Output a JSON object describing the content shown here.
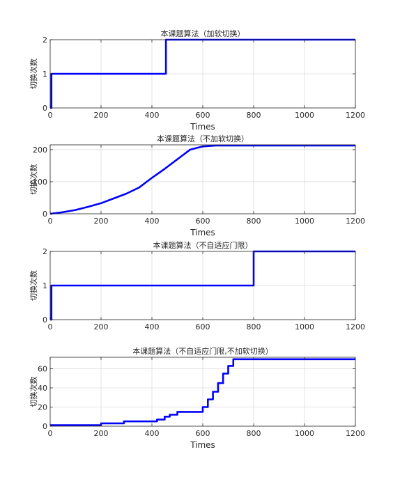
{
  "chart_data": [
    {
      "type": "line",
      "title": "本课题算法（加软切换）",
      "xlabel": "Times",
      "ylabel": "切换次数",
      "xlim": [
        0,
        1200
      ],
      "ylim": [
        0,
        2
      ],
      "xticks": [
        0,
        200,
        400,
        600,
        800,
        1000,
        1200
      ],
      "yticks": [
        0,
        1,
        2
      ],
      "grid": true,
      "line_color": "#0000ff",
      "series": [
        {
          "step": true,
          "x": [
            0,
            5,
            455,
            1200
          ],
          "y": [
            0,
            1,
            2,
            2
          ]
        }
      ]
    },
    {
      "type": "line",
      "title": "本课题算法（不加软切换）",
      "xlabel": "Times",
      "ylabel": "切换次数",
      "xlim": [
        0,
        1200
      ],
      "ylim": [
        0,
        215
      ],
      "xticks": [
        0,
        200,
        400,
        600,
        800,
        1000,
        1200
      ],
      "yticks": [
        0,
        100,
        200
      ],
      "grid": true,
      "line_color": "#0000ff",
      "series": [
        {
          "step": false,
          "x": [
            0,
            20,
            50,
            100,
            150,
            200,
            250,
            300,
            350,
            400,
            450,
            500,
            550,
            600,
            650,
            700,
            1200
          ],
          "y": [
            0,
            2,
            5,
            12,
            22,
            33,
            48,
            63,
            82,
            112,
            140,
            170,
            200,
            210,
            213,
            213,
            213
          ]
        }
      ]
    },
    {
      "type": "line",
      "title": "本课题算法（不自适应门限）",
      "xlabel": "",
      "ylabel": "切换次数",
      "xlim": [
        0,
        1200
      ],
      "ylim": [
        0,
        2
      ],
      "xticks": [
        0,
        200,
        400,
        600,
        800,
        1000,
        1200
      ],
      "yticks": [
        0,
        1,
        2
      ],
      "grid": true,
      "line_color": "#0000ff",
      "series": [
        {
          "step": true,
          "x": [
            0,
            5,
            800,
            1200
          ],
          "y": [
            0,
            1,
            2,
            2
          ]
        }
      ]
    },
    {
      "type": "line",
      "title": "本课题算法（不自适应门限,不加软切换）",
      "xlabel": "Times",
      "ylabel": "切换次数",
      "xlim": [
        0,
        1200
      ],
      "ylim": [
        0,
        72
      ],
      "xticks": [
        0,
        200,
        400,
        600,
        800,
        1000,
        1200
      ],
      "yticks": [
        0,
        20,
        40,
        60
      ],
      "grid": true,
      "line_color": "#0000ff",
      "series": [
        {
          "step": true,
          "x": [
            0,
            200,
            290,
            420,
            450,
            470,
            500,
            600,
            620,
            640,
            660,
            680,
            700,
            720,
            735,
            1200
          ],
          "y": [
            1,
            3,
            5,
            7,
            10,
            12,
            15,
            20,
            28,
            36,
            45,
            55,
            63,
            70,
            70,
            70
          ]
        }
      ]
    }
  ]
}
